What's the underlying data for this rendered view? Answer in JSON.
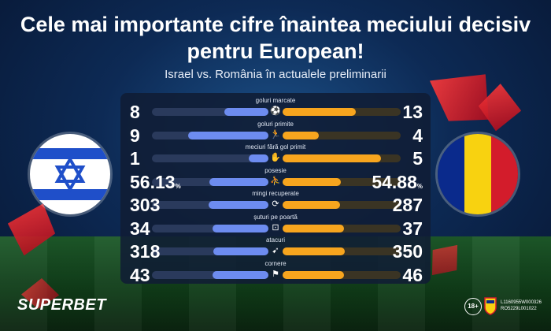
{
  "header": {
    "title": "Cele mai importante cifre înaintea meciului decisiv pentru European!",
    "subtitle": "Israel vs. România în actualele preliminarii"
  },
  "stats": [
    {
      "label": "goluri marcate",
      "left": "8",
      "right": "13",
      "left_num": 8,
      "right_num": 13,
      "icon": "soccer-ball-icon",
      "glyph": "⚽"
    },
    {
      "label": "goluri primite",
      "left": "9",
      "right": "4",
      "left_num": 9,
      "right_num": 4,
      "icon": "goalkeeper-icon",
      "glyph": "🏃"
    },
    {
      "label": "meciuri fără gol primit",
      "left": "1",
      "right": "5",
      "left_num": 1,
      "right_num": 5,
      "icon": "glove-icon",
      "glyph": "✋"
    },
    {
      "label": "posesie",
      "left": "56.13",
      "right": "54.88",
      "left_num": 56.13,
      "right_num": 54.88,
      "unit": "%",
      "icon": "possession-icon",
      "glyph": "⛹"
    },
    {
      "label": "mingi recuperate",
      "left": "303",
      "right": "287",
      "left_num": 303,
      "right_num": 287,
      "icon": "recover-icon",
      "glyph": "⟳"
    },
    {
      "label": "șuturi pe poartă",
      "left": "34",
      "right": "37",
      "left_num": 34,
      "right_num": 37,
      "icon": "goal-net-icon",
      "glyph": "⊡"
    },
    {
      "label": "atacuri",
      "left": "318",
      "right": "350",
      "left_num": 318,
      "right_num": 350,
      "icon": "attack-icon",
      "glyph": "➹"
    },
    {
      "label": "cornere",
      "left": "43",
      "right": "46",
      "left_num": 43,
      "right_num": 46,
      "icon": "corner-flag-icon",
      "glyph": "⚑"
    }
  ],
  "colors": {
    "israel_bar": "#6d8cf0",
    "romania_bar": "#f7a51e",
    "romania_blue": "#0a2a8c",
    "romania_yellow": "#f8d210",
    "romania_red": "#d31c2b",
    "israel_blue": "#1f4fc9"
  },
  "footer": {
    "brand": "SUPERBET",
    "age_badge": "18+",
    "license_line_1": "L1160955W000326",
    "license_line_2": "RO5229L001022"
  }
}
